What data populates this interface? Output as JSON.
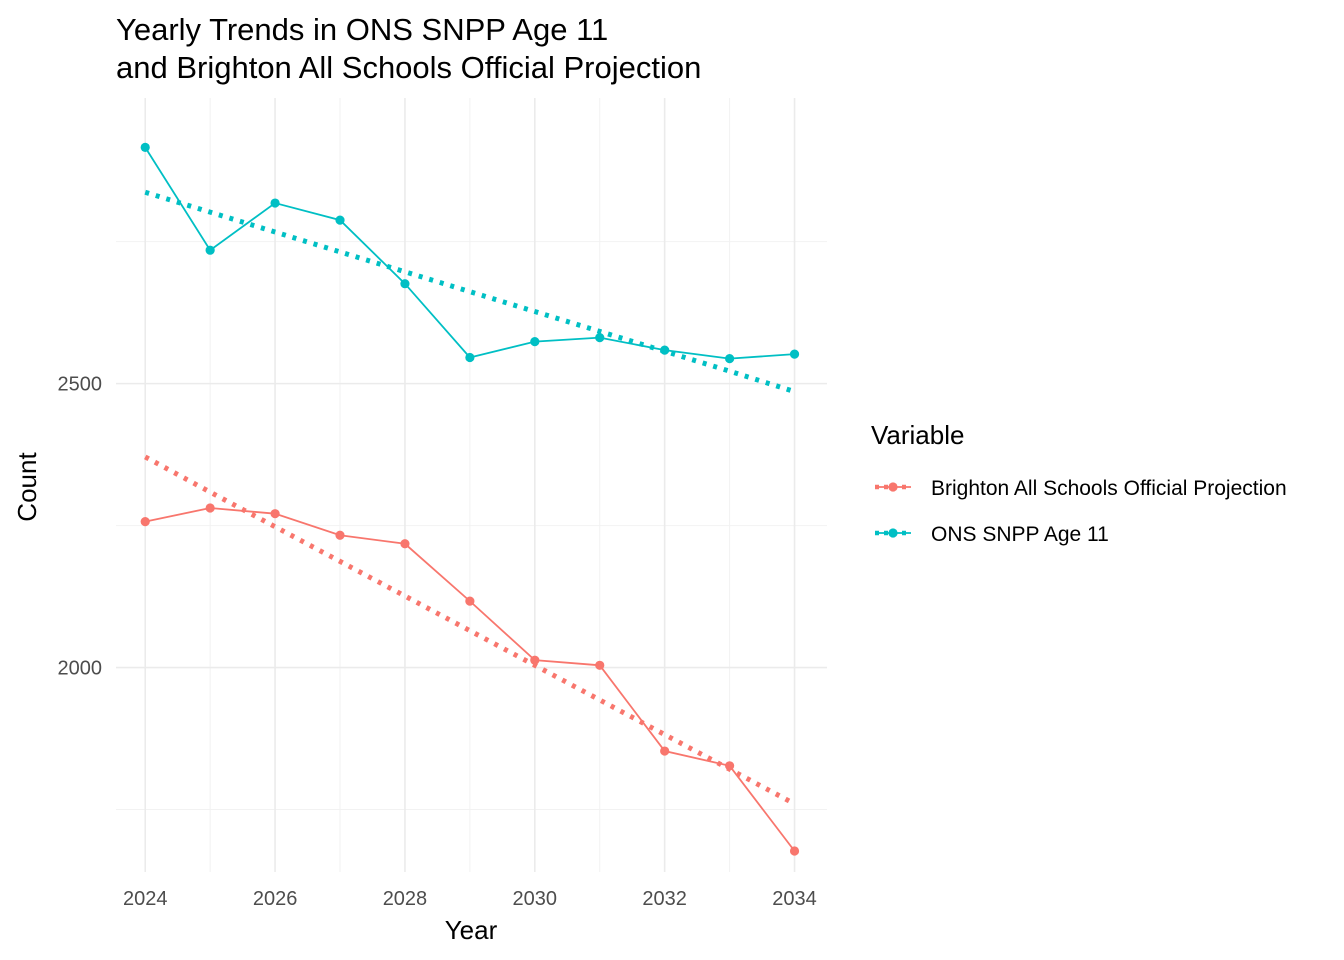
{
  "chart_data": {
    "type": "line",
    "title_line1": "Yearly Trends in ONS SNPP Age 11",
    "title_line2": "and Brighton All Schools Official Projection",
    "xlabel": "Year",
    "ylabel": "Count",
    "x": [
      2024,
      2025,
      2026,
      2027,
      2028,
      2029,
      2030,
      2031,
      2032,
      2033,
      2034
    ],
    "x_ticks": [
      2024,
      2026,
      2028,
      2030,
      2032,
      2034
    ],
    "y_ticks": [
      2000,
      2500
    ],
    "xlim": [
      2023.55,
      2034.5
    ],
    "ylim": [
      1640,
      3003
    ],
    "grid": true,
    "legend": {
      "title": "Variable",
      "placement": "right"
    },
    "series": [
      {
        "name": "Brighton All Schools Official Projection",
        "color": "#F8766D",
        "values": [
          2257,
          2281,
          2271,
          2233,
          2218,
          2117,
          2013,
          2004,
          1853,
          1827,
          1677
        ],
        "trend": [
          2371,
          2309,
          2248,
          2187,
          2126,
          2065,
          2004,
          1943,
          1882,
          1821,
          1760
        ]
      },
      {
        "name": "ONS SNPP Age 11",
        "color": "#00BFC4",
        "values": [
          2916,
          2735,
          2818,
          2788,
          2676,
          2546,
          2574,
          2581,
          2559,
          2544,
          2552
        ],
        "trend": [
          2837,
          2802,
          2767,
          2732,
          2697,
          2662,
          2627,
          2592,
          2557,
          2522,
          2486
        ]
      }
    ]
  }
}
